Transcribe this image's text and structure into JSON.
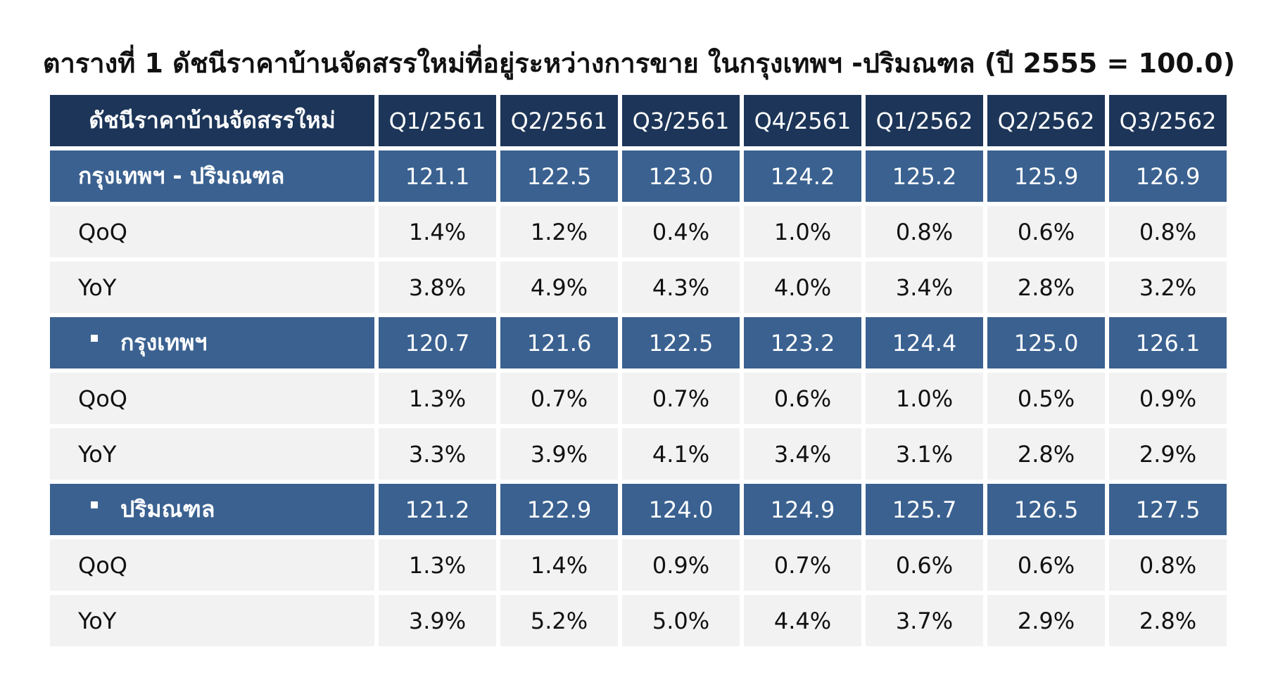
{
  "title": "ตารางที่ 1 ดัชนีราคาบ้านจัดสรรใหม่ที่อยู่ระหว่างการขาย ในกรุงเทพฯ -ปริมณฑล (ปี 2555 = 100.0)",
  "table": {
    "header": {
      "label": "ดัชนีราคาบ้านจัดสรรใหม่",
      "quarters": [
        "Q1/2561",
        "Q2/2561",
        "Q3/2561",
        "Q4/2561",
        "Q1/2562",
        "Q2/2562",
        "Q3/2562"
      ]
    },
    "sections": [
      {
        "name": "กรุงเทพฯ - ปริมณฑล",
        "bullet": false,
        "index": [
          "121.1",
          "122.5",
          "123.0",
          "124.2",
          "125.2",
          "125.9",
          "126.9"
        ],
        "qoq_label": "QoQ",
        "qoq": [
          "1.4%",
          "1.2%",
          "0.4%",
          "1.0%",
          "0.8%",
          "0.6%",
          "0.8%"
        ],
        "yoy_label": "YoY",
        "yoy": [
          "3.8%",
          "4.9%",
          "4.3%",
          "4.0%",
          "3.4%",
          "2.8%",
          "3.2%"
        ]
      },
      {
        "name": "กรุงเทพฯ",
        "bullet": true,
        "index": [
          "120.7",
          "121.6",
          "122.5",
          "123.2",
          "124.4",
          "125.0",
          "126.1"
        ],
        "qoq_label": "QoQ",
        "qoq": [
          "1.3%",
          "0.7%",
          "0.7%",
          "0.6%",
          "1.0%",
          "0.5%",
          "0.9%"
        ],
        "yoy_label": "YoY",
        "yoy": [
          "3.3%",
          "3.9%",
          "4.1%",
          "3.4%",
          "3.1%",
          "2.8%",
          "2.9%"
        ]
      },
      {
        "name": "ปริมณฑล",
        "bullet": true,
        "index": [
          "121.2",
          "122.9",
          "124.0",
          "124.9",
          "125.7",
          "126.5",
          "127.5"
        ],
        "qoq_label": "QoQ",
        "qoq": [
          "1.3%",
          "1.4%",
          "0.9%",
          "0.7%",
          "0.6%",
          "0.6%",
          "0.8%"
        ],
        "yoy_label": "YoY",
        "yoy": [
          "3.9%",
          "5.2%",
          "5.0%",
          "4.4%",
          "3.7%",
          "2.9%",
          "2.8%"
        ]
      }
    ]
  },
  "colors": {
    "header_bg": "#1c3558",
    "region_bg": "#3a6190",
    "metric_bg": "#f2f2f2"
  }
}
